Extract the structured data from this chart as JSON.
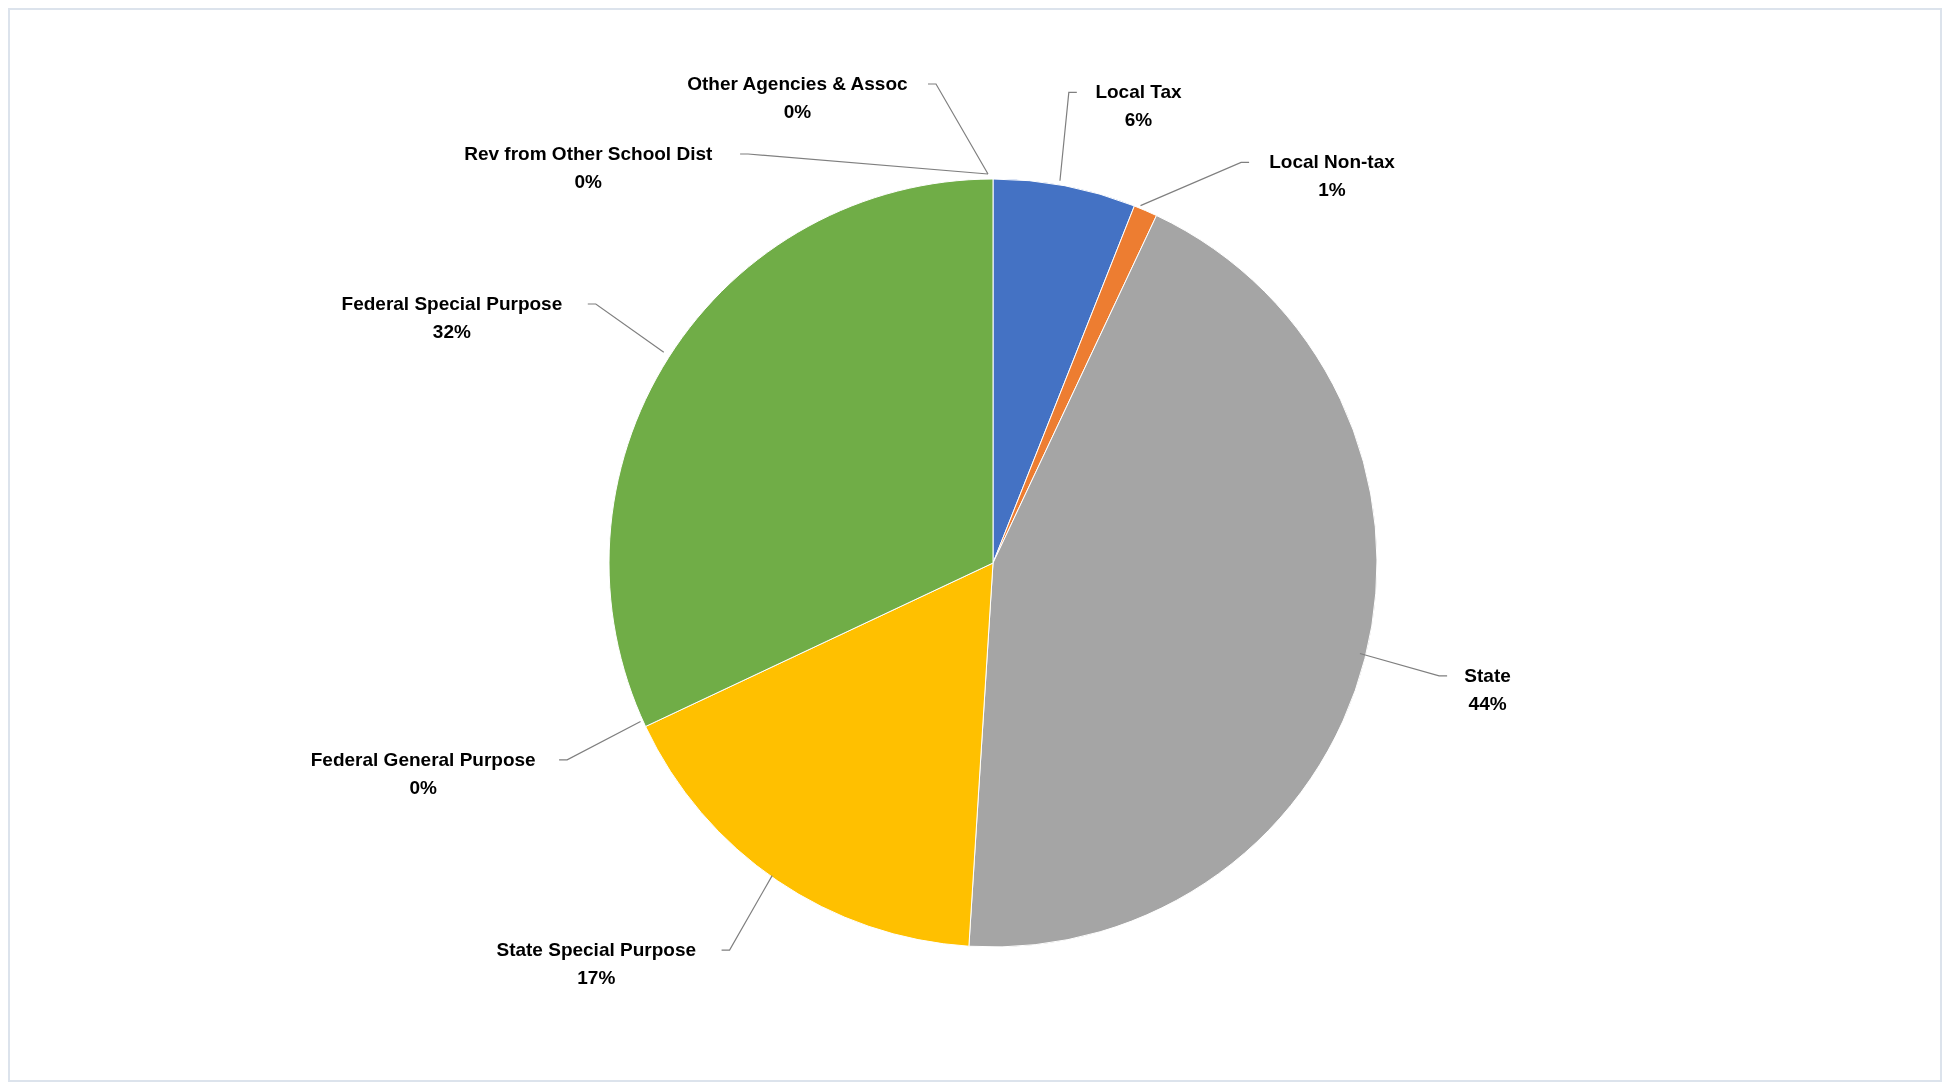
{
  "chart_data": {
    "type": "pie",
    "categories": [
      "Local Tax",
      "Local Non-tax",
      "State",
      "State Special Purpose",
      "Federal General Purpose",
      "Federal Special Purpose",
      "Other Agencies & Assoc",
      "Rev from Other School Dist"
    ],
    "values": [
      6,
      1,
      44,
      17,
      0,
      32,
      0,
      0
    ],
    "value_labels": [
      "6%",
      "1%",
      "44%",
      "17%",
      "0%",
      "32%",
      "0%",
      "0%"
    ],
    "colors": [
      "#4472c4",
      "#ed7d31",
      "#a5a5a5",
      "#ffc000",
      "#5b9bd5",
      "#70ad47",
      "#264478",
      "#9e480e"
    ],
    "legend": false
  }
}
